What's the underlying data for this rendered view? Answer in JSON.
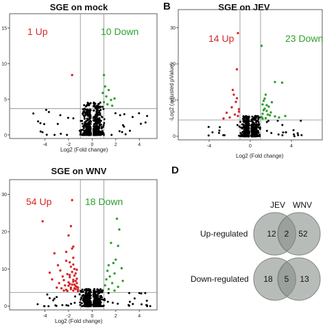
{
  "colors": {
    "up": "#d62728",
    "down": "#2ca02c",
    "ns": "#000000",
    "venn_fill": "#b7bcb9",
    "venn_overlap": "#9aa09c",
    "venn_stroke": "#7e8480"
  },
  "panels": [
    {
      "letter": "",
      "title": "SGE on mock",
      "up_label": "1 Up",
      "down_label": "10 Down",
      "xlabel": "Log2 (Fold change)",
      "ylabel": "",
      "xticks": [
        "-4",
        "-2",
        "0",
        "2",
        "4"
      ],
      "yticks": [
        "0",
        "5",
        "10",
        "15"
      ]
    },
    {
      "letter": "B",
      "title": "SGE on JEV",
      "up_label": "14 Up",
      "down_label": "23 Down",
      "xlabel": "Log2 (Fold change)",
      "ylabel": "-Log2 (adjusted pValue)",
      "xticks": [
        "-4",
        "0",
        "4"
      ],
      "yticks": [
        "0",
        "10",
        "20",
        "30"
      ]
    },
    {
      "letter": "",
      "title": "SGE on WNV",
      "up_label": "54 Up",
      "down_label": "18 Down",
      "xlabel": "Log2 (Fold change)",
      "ylabel": "",
      "xticks": [
        "-4",
        "-2",
        "0",
        "2",
        "4"
      ],
      "yticks": [
        "0",
        "10",
        "20",
        "30"
      ]
    }
  ],
  "venn": {
    "letter": "D",
    "set_a": "JEV",
    "set_b": "WNV",
    "rows": [
      {
        "label": "Up-regulated",
        "left": "12",
        "both": "2",
        "right": "52"
      },
      {
        "label": "Down-regulated",
        "left": "18",
        "both": "5",
        "right": "13"
      }
    ]
  },
  "chart_data": [
    {
      "type": "scatter",
      "title": "SGE on mock",
      "xlabel": "Log2 (Fold change)",
      "ylabel": "",
      "xlim": [
        -7,
        5.5
      ],
      "ylim": [
        -0.5,
        17
      ],
      "fc_threshold": [
        -1,
        1
      ],
      "p_threshold": 3.7,
      "series": [
        {
          "name": "1 Up",
          "points": [
            [
              -1.7,
              8.4
            ]
          ]
        },
        {
          "name": "10 Down",
          "points": [
            [
              1.0,
              8.4
            ],
            [
              1.2,
              5.4
            ],
            [
              1.0,
              4.6
            ],
            [
              1.6,
              4.9
            ],
            [
              1.3,
              4.3
            ],
            [
              1.9,
              5.1
            ],
            [
              0.9,
              5.9
            ],
            [
              1.4,
              6.3
            ],
            [
              1.7,
              4.1
            ],
            [
              1.1,
              6.8
            ]
          ]
        }
      ]
    },
    {
      "type": "scatter",
      "title": "SGE on JEV",
      "xlabel": "Log2 (Fold change)",
      "ylabel": "-Log2 (adjusted pValue)",
      "xlim": [
        -7,
        7
      ],
      "ylim": [
        -1,
        35
      ],
      "fc_threshold": [
        -1,
        1
      ],
      "p_threshold": 4.5,
      "series": [
        {
          "name": "14 Up",
          "points": [
            [
              -1.2,
              28.5
            ],
            [
              -1.3,
              18.5
            ],
            [
              -1.6,
              11.5
            ],
            [
              -1.4,
              9.5
            ],
            [
              -1.8,
              8.0
            ],
            [
              -2.3,
              6.5
            ],
            [
              -1.1,
              7.5
            ],
            [
              -1.5,
              6.0
            ],
            [
              -1.2,
              5.6
            ],
            [
              -2.0,
              5.2
            ],
            [
              -1.7,
              12.8
            ],
            [
              -1.3,
              10.5
            ],
            [
              -1.1,
              6.8
            ],
            [
              -2.6,
              4.9
            ]
          ]
        },
        {
          "name": "23 Down",
          "points": [
            [
              1.1,
              25.0
            ],
            [
              2.4,
              15.0
            ],
            [
              3.1,
              14.8
            ],
            [
              1.5,
              11.5
            ],
            [
              1.3,
              9.8
            ],
            [
              1.2,
              8.8
            ],
            [
              1.8,
              8.2
            ],
            [
              1.4,
              7.6
            ],
            [
              1.6,
              7.0
            ],
            [
              2.0,
              6.6
            ],
            [
              1.2,
              6.2
            ],
            [
              1.9,
              5.8
            ],
            [
              2.4,
              5.5
            ],
            [
              1.1,
              5.3
            ],
            [
              1.5,
              5.0
            ],
            [
              3.4,
              5.6
            ],
            [
              1.7,
              6.0
            ],
            [
              1.3,
              7.2
            ],
            [
              2.1,
              9.4
            ],
            [
              1.4,
              10.4
            ],
            [
              1.2,
              4.9
            ],
            [
              2.8,
              5.2
            ],
            [
              1.6,
              8.6
            ]
          ]
        }
      ]
    },
    {
      "type": "scatter",
      "title": "SGE on WNV",
      "xlabel": "Log2 (Fold change)",
      "ylabel": "",
      "xlim": [
        -7,
        5.5
      ],
      "ylim": [
        -1,
        34
      ],
      "fc_threshold": [
        -1,
        1
      ],
      "p_threshold": 3.7,
      "series": [
        {
          "name": "54 Up",
          "points": [
            [
              -4.2,
              22.8
            ],
            [
              -1.7,
              28.5
            ],
            [
              -1.8,
              21.5
            ],
            [
              -2.0,
              19.0
            ],
            [
              -1.6,
              16.0
            ],
            [
              -1.7,
              15.5
            ],
            [
              -2.2,
              14.6
            ],
            [
              -3.2,
              14.2
            ],
            [
              -1.6,
              13.0
            ],
            [
              -2.9,
              11.0
            ],
            [
              -1.8,
              10.6
            ],
            [
              -3.6,
              9.0
            ],
            [
              -2.1,
              8.6
            ],
            [
              -1.5,
              8.2
            ],
            [
              -1.9,
              7.8
            ],
            [
              -3.4,
              7.2
            ],
            [
              -2.4,
              7.0
            ],
            [
              -1.6,
              6.6
            ],
            [
              -2.8,
              6.2
            ],
            [
              -1.5,
              5.8
            ],
            [
              -2.0,
              5.5
            ],
            [
              -1.3,
              5.2
            ],
            [
              -1.8,
              5.0
            ],
            [
              -2.6,
              4.8
            ],
            [
              -1.4,
              4.6
            ],
            [
              -2.2,
              4.4
            ],
            [
              -1.6,
              4.2
            ],
            [
              -1.2,
              4.0
            ],
            [
              -1.9,
              6.0
            ],
            [
              -1.4,
              6.8
            ],
            [
              -2.3,
              5.6
            ],
            [
              -1.7,
              9.2
            ],
            [
              -1.3,
              7.4
            ],
            [
              -2.5,
              8.0
            ],
            [
              -1.5,
              10.0
            ],
            [
              -1.9,
              11.8
            ],
            [
              -1.2,
              4.4
            ],
            [
              -1.4,
              5.4
            ],
            [
              -2.1,
              4.1
            ],
            [
              -1.6,
              7.1
            ],
            [
              -1.8,
              4.6
            ],
            [
              -3.0,
              5.0
            ],
            [
              -1.3,
              6.2
            ],
            [
              -2.7,
              9.6
            ],
            [
              -1.5,
              4.8
            ],
            [
              -2.0,
              6.4
            ],
            [
              -1.7,
              5.8
            ],
            [
              -1.4,
              8.8
            ],
            [
              -2.4,
              4.2
            ],
            [
              -1.2,
              5.0
            ],
            [
              -1.9,
              8.4
            ],
            [
              -1.6,
              11.2
            ],
            [
              -2.2,
              12.2
            ],
            [
              -1.3,
              9.8
            ]
          ]
        },
        {
          "name": "18 Down",
          "points": [
            [
              2.1,
              23.5
            ],
            [
              2.3,
              20.6
            ],
            [
              1.6,
              17.0
            ],
            [
              2.2,
              16.2
            ],
            [
              2.0,
              12.5
            ],
            [
              1.8,
              11.6
            ],
            [
              1.4,
              11.0
            ],
            [
              2.5,
              10.2
            ],
            [
              1.3,
              9.5
            ],
            [
              1.9,
              8.8
            ],
            [
              1.5,
              8.0
            ],
            [
              1.2,
              7.2
            ],
            [
              2.6,
              6.8
            ],
            [
              1.7,
              6.2
            ],
            [
              1.1,
              5.6
            ],
            [
              2.2,
              5.2
            ],
            [
              1.4,
              4.6
            ],
            [
              1.9,
              4.2
            ]
          ]
        }
      ]
    }
  ]
}
